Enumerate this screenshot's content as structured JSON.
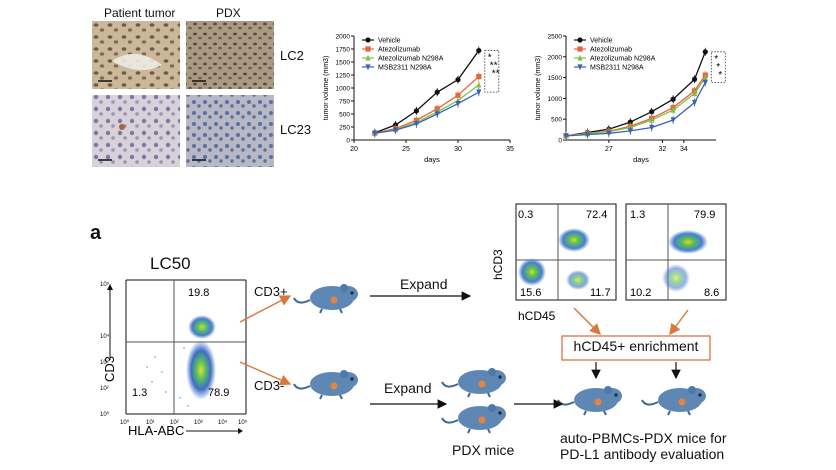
{
  "ihc": {
    "col_headers": [
      "Patient tumor",
      "PDX"
    ],
    "row_labels": [
      "LC2",
      "LC23"
    ]
  },
  "chart_data": [
    {
      "type": "line",
      "xlabel": "days",
      "ylabel": "tumor volume (mm3)",
      "xlim": [
        20,
        35
      ],
      "ylim": [
        0,
        2000
      ],
      "xticks": [
        20,
        25,
        30,
        35
      ],
      "yticks": [
        0,
        250,
        500,
        750,
        1000,
        1250,
        1500,
        1750,
        2000
      ],
      "x": [
        22,
        24,
        26,
        28,
        30,
        32
      ],
      "series": [
        {
          "name": "Vehicle",
          "color": "#111111",
          "marker": "circle",
          "values": [
            140,
            290,
            560,
            920,
            1160,
            1720
          ]
        },
        {
          "name": "Atezolizumab",
          "color": "#e8643a",
          "marker": "square",
          "values": [
            130,
            220,
            380,
            600,
            860,
            1220
          ]
        },
        {
          "name": "Atezolizumab N298A",
          "color": "#7ec24a",
          "marker": "triangle",
          "values": [
            130,
            200,
            340,
            540,
            760,
            1060
          ]
        },
        {
          "name": "MSB2311 N298A",
          "color": "#3c62b8",
          "marker": "tri-down",
          "values": [
            130,
            190,
            310,
            500,
            700,
            920
          ]
        }
      ],
      "annotations": [
        "*",
        "**",
        "**"
      ]
    },
    {
      "type": "line",
      "xlabel": "days",
      "ylabel": "tumor volume (mm3)",
      "xlim": [
        23,
        37
      ],
      "ylim": [
        0,
        2500
      ],
      "xticks": [
        27,
        32,
        34
      ],
      "xtick_labels": [
        "27",
        "32",
        "34"
      ],
      "yticks": [
        0,
        500,
        1000,
        1500,
        2000,
        2500
      ],
      "x": [
        23,
        25,
        27,
        29,
        31,
        33,
        35,
        36
      ],
      "series": [
        {
          "name": "Vehicle",
          "color": "#111111",
          "marker": "circle",
          "values": [
            100,
            180,
            260,
            430,
            680,
            980,
            1460,
            2120
          ]
        },
        {
          "name": "Atezolizumab",
          "color": "#e8643a",
          "marker": "square",
          "values": [
            100,
            160,
            210,
            330,
            520,
            780,
            1180,
            1560
          ]
        },
        {
          "name": "Atezolizumab N298A",
          "color": "#7ec24a",
          "marker": "triangle",
          "values": [
            100,
            150,
            200,
            300,
            480,
            720,
            1120,
            1500
          ]
        },
        {
          "name": "MSB2311 N298A",
          "color": "#3c62b8",
          "marker": "tri-down",
          "values": [
            100,
            130,
            160,
            220,
            300,
            480,
            900,
            1380
          ]
        }
      ],
      "annotations": [
        "*",
        "*",
        "*"
      ]
    }
  ],
  "panel_letter": "a",
  "facs": {
    "title": "LC50",
    "xlabel": "HLA-ABC",
    "ylabel": "CD3",
    "quadrants": {
      "ul": "",
      "ur": "19.8",
      "ll": "1.3",
      "lr": "78.9"
    },
    "axis_tick_labels": [
      "10⁰",
      "10¹",
      "10²",
      "10³",
      "10⁴",
      "10⁵"
    ]
  },
  "facs_right": {
    "xlabel": "hCD45",
    "ylabel": "hCD3",
    "plot1": {
      "ul": "0.3",
      "ur": "72.4",
      "ll": "15.6",
      "lr": "11.7"
    },
    "plot2": {
      "ul": "1.3",
      "ur": "79.9",
      "ll": "10.2",
      "lr": "8.6"
    }
  },
  "flow": {
    "cd3_pos": "CD3+",
    "cd3_neg": "CD3-",
    "expand_top": "Expand",
    "expand_bottom": "Expand",
    "enrichment": "hCD45+ enrichment",
    "pdx_mice": "PDX mice",
    "final_label_line1": "auto-PBMCs-PDX mice for",
    "final_label_line2": "PD-L1 antibody evaluation"
  },
  "colors": {
    "mouse_body": "#5f87b4",
    "mouse_shade": "#3f6a98",
    "arrow_orange": "#d9773d",
    "box_border": "#d9773d"
  }
}
